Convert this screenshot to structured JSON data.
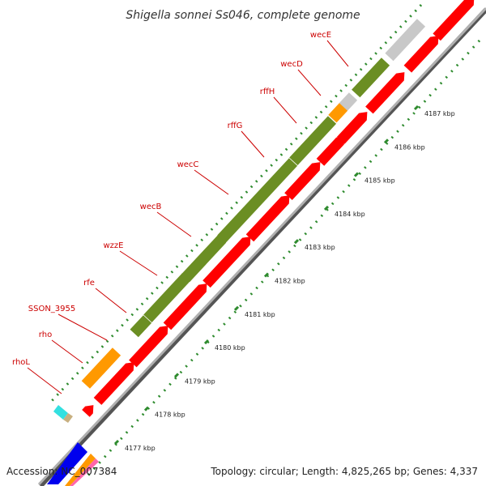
{
  "header": {
    "title": "Shigella sonnei Ss046, complete genome"
  },
  "footer": {
    "accession": "Accession: NC_007384",
    "summary": "Topology: circular; Length: 4,825,265 bp; Genes: 4,337"
  },
  "genes": [
    {
      "name": "wecE"
    },
    {
      "name": "wecD"
    },
    {
      "name": "rffH"
    },
    {
      "name": "rffG"
    },
    {
      "name": "wecC"
    },
    {
      "name": "wecB"
    },
    {
      "name": "wzzE"
    },
    {
      "name": "rfe"
    },
    {
      "name": "SSON_3955"
    },
    {
      "name": "rho"
    },
    {
      "name": "rhoL"
    }
  ],
  "ticks": [
    {
      "label": "4187 kbp"
    },
    {
      "label": "4186 kbp"
    },
    {
      "label": "4185 kbp"
    },
    {
      "label": "4184 kbp"
    },
    {
      "label": "4183 kbp"
    },
    {
      "label": "4182 kbp"
    },
    {
      "label": "4181 kbp"
    },
    {
      "label": "4180 kbp"
    },
    {
      "label": "4179 kbp"
    },
    {
      "label": "4178 kbp"
    },
    {
      "label": "4177 kbp"
    }
  ],
  "colors": {
    "cds": "#ff0000",
    "rrna_like": "#6b8e23",
    "orange": "#ff9900",
    "gray": "#c8c8c8",
    "backbone": "#808080",
    "tick_green": "#2e8b2e",
    "label_red": "#cc0000"
  }
}
